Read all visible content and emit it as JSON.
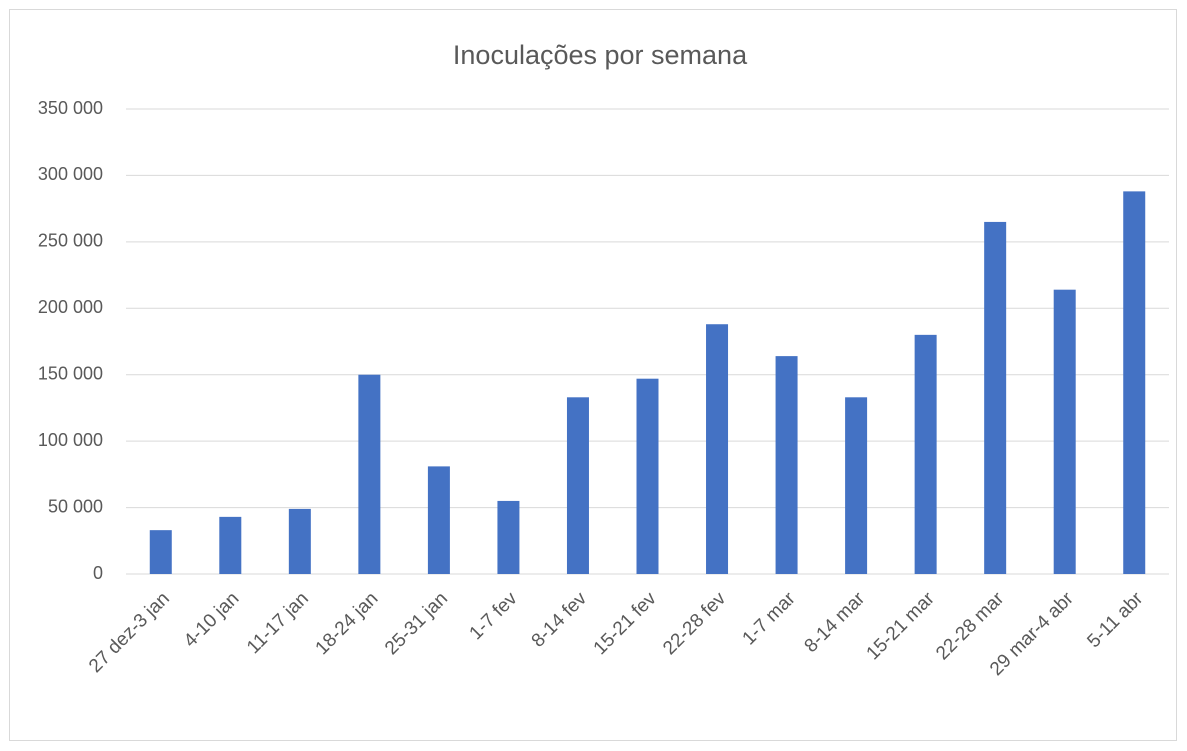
{
  "chart_data": {
    "type": "bar",
    "title": "Inoculações por semana",
    "categories": [
      "27 dez-3 jan",
      "4-10 jan",
      "11-17 jan",
      "18-24 jan",
      "25-31 jan",
      "1-7 fev",
      "8-14 fev",
      "15-21 fev",
      "22-28 fev",
      "1-7 mar",
      "8-14 mar",
      "15-21 mar",
      "22-28 mar",
      "29 mar-4 abr",
      "5-11 abr"
    ],
    "values": [
      33000,
      43000,
      49000,
      150000,
      81000,
      55000,
      133000,
      147000,
      188000,
      164000,
      133000,
      180000,
      265000,
      214000,
      288000
    ],
    "color": "#4472c4",
    "ylim": [
      0,
      350000
    ],
    "yticks": [
      0,
      {
        "value": 50000,
        "label": "50 000"
      },
      {
        "value": 100000,
        "label": "100 000"
      },
      {
        "value": 150000,
        "label": "150 000"
      },
      {
        "value": 200000,
        "label": "200 000"
      },
      {
        "value": 250000,
        "label": "250 000"
      },
      {
        "value": 300000,
        "label": "300 000"
      },
      {
        "value": 350000,
        "label": "350 000"
      }
    ],
    "grid": true
  }
}
